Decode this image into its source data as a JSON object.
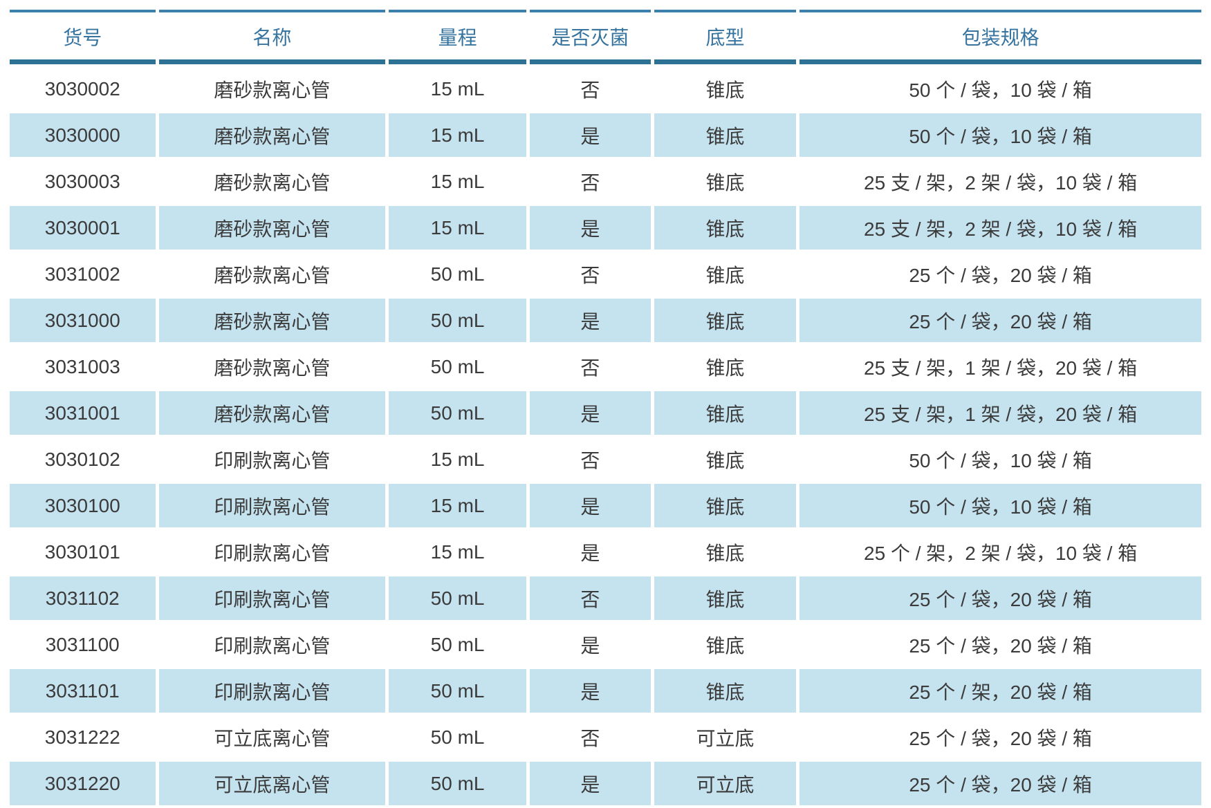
{
  "colors": {
    "header_text": "#36749f",
    "top_rule": "#3e80ac",
    "header_underline": "#2d7294",
    "alt_row_bg": "#c5e2ef",
    "body_text": "#3b3b3b"
  },
  "table": {
    "columns": [
      {
        "key": "sku",
        "label": "货号",
        "width_pct": 12.4
      },
      {
        "key": "name",
        "label": "名称",
        "width_pct": 19.3
      },
      {
        "key": "range",
        "label": "量程",
        "width_pct": 11.7
      },
      {
        "key": "sterile",
        "label": "是否灭菌",
        "width_pct": 10.3
      },
      {
        "key": "bottom",
        "label": "底型",
        "width_pct": 12.1
      },
      {
        "key": "packaging",
        "label": "包装规格",
        "width_pct": 34.2
      }
    ],
    "rows": [
      [
        "3030002",
        "磨砂款离心管",
        "15 mL",
        "否",
        "锥底",
        "50 个 / 袋，10 袋 / 箱"
      ],
      [
        "3030000",
        "磨砂款离心管",
        "15 mL",
        "是",
        "锥底",
        "50 个 / 袋，10 袋 / 箱"
      ],
      [
        "3030003",
        "磨砂款离心管",
        "15 mL",
        "否",
        "锥底",
        "25 支 / 架，2 架 / 袋，10 袋 / 箱"
      ],
      [
        "3030001",
        "磨砂款离心管",
        "15 mL",
        "是",
        "锥底",
        "25 支 / 架，2 架 / 袋，10 袋 / 箱"
      ],
      [
        "3031002",
        "磨砂款离心管",
        "50 mL",
        "否",
        "锥底",
        "25 个 / 袋，20 袋 / 箱"
      ],
      [
        "3031000",
        "磨砂款离心管",
        "50 mL",
        "是",
        "锥底",
        "25 个 / 袋，20 袋 / 箱"
      ],
      [
        "3031003",
        "磨砂款离心管",
        "50 mL",
        "否",
        "锥底",
        "25 支 / 架，1 架 / 袋，20 袋 / 箱"
      ],
      [
        "3031001",
        "磨砂款离心管",
        "50 mL",
        "是",
        "锥底",
        "25 支 / 架，1 架 / 袋，20 袋 / 箱"
      ],
      [
        "3030102",
        "印刷款离心管",
        "15 mL",
        "否",
        "锥底",
        "50 个 / 袋，10 袋 / 箱"
      ],
      [
        "3030100",
        "印刷款离心管",
        "15 mL",
        "是",
        "锥底",
        "50 个 / 袋，10 袋 / 箱"
      ],
      [
        "3030101",
        "印刷款离心管",
        "15 mL",
        "是",
        "锥底",
        "25 个 / 架，2 架 / 袋，10 袋 / 箱"
      ],
      [
        "3031102",
        "印刷款离心管",
        "50 mL",
        "否",
        "锥底",
        "25 个 / 袋，20 袋 / 箱"
      ],
      [
        "3031100",
        "印刷款离心管",
        "50 mL",
        "是",
        "锥底",
        "25 个 / 袋，20 袋 / 箱"
      ],
      [
        "3031101",
        "印刷款离心管",
        "50 mL",
        "是",
        "锥底",
        "25 个 / 架，20 袋 / 箱"
      ],
      [
        "3031222",
        "可立底离心管",
        "50 mL",
        "否",
        "可立底",
        "25 个 / 袋，20 袋 / 箱"
      ],
      [
        "3031220",
        "可立底离心管",
        "50 mL",
        "是",
        "可立底",
        "25 个 / 袋，20 袋 / 箱"
      ]
    ]
  }
}
